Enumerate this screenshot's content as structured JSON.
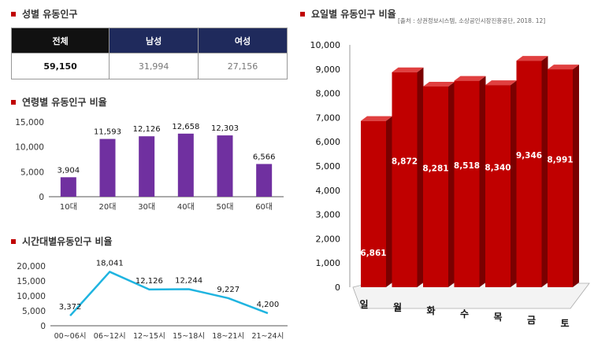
{
  "gender": {
    "title": "성별 유동인구",
    "headers": [
      "전체",
      "남성",
      "여성"
    ],
    "values": [
      "59,150",
      "31,994",
      "27,156"
    ]
  },
  "source": "[출처 : 상권정보시스템, 소상공인시장진흥공단, 2018. 12]",
  "colors": {
    "accent": "#c00000",
    "purple": "#7030a0",
    "line": "#1fb4e0",
    "bar3d": "#c00000",
    "table_header": "#1f2a5c"
  },
  "chart_data": [
    {
      "type": "bar",
      "title": "연령별 유동인구 비율",
      "categories": [
        "10대",
        "20대",
        "30대",
        "40대",
        "50대",
        "60대"
      ],
      "values": [
        3904,
        11593,
        12126,
        12658,
        12303,
        6566
      ],
      "value_labels": [
        "3,904",
        "11,593",
        "12,126",
        "12,658",
        "12,303",
        "6,566"
      ],
      "yticks": [
        "0",
        "5,000",
        "10,000",
        "15,000"
      ],
      "ylim": [
        0,
        15000
      ]
    },
    {
      "type": "line",
      "title": "시간대별유동인구 비율",
      "categories": [
        "00~06시",
        "06~12시",
        "12~15시",
        "15~18시",
        "18~21시",
        "21~24시"
      ],
      "values": [
        3372,
        18041,
        12126,
        12244,
        9227,
        4200
      ],
      "value_labels": [
        "3,372",
        "18,041",
        "12,126",
        "12,244",
        "9,227",
        "4,200"
      ],
      "yticks": [
        "0",
        "5,000",
        "10,000",
        "15,000",
        "20,000"
      ],
      "ylim": [
        0,
        20000
      ]
    },
    {
      "type": "bar",
      "title": "요일별 유동인구 비율",
      "categories": [
        "일",
        "월",
        "화",
        "수",
        "목",
        "금",
        "토"
      ],
      "values": [
        6861,
        8872,
        8281,
        8518,
        8340,
        9346,
        8991
      ],
      "value_labels": [
        "6,861",
        "8,872",
        "8,281",
        "8,518",
        "8,340",
        "9,346",
        "8,991"
      ],
      "yticks": [
        "0",
        "1,000",
        "2,000",
        "3,000",
        "4,000",
        "5,000",
        "6,000",
        "7,000",
        "8,000",
        "9,000",
        "10,000"
      ],
      "ylim": [
        0,
        10000
      ]
    }
  ]
}
